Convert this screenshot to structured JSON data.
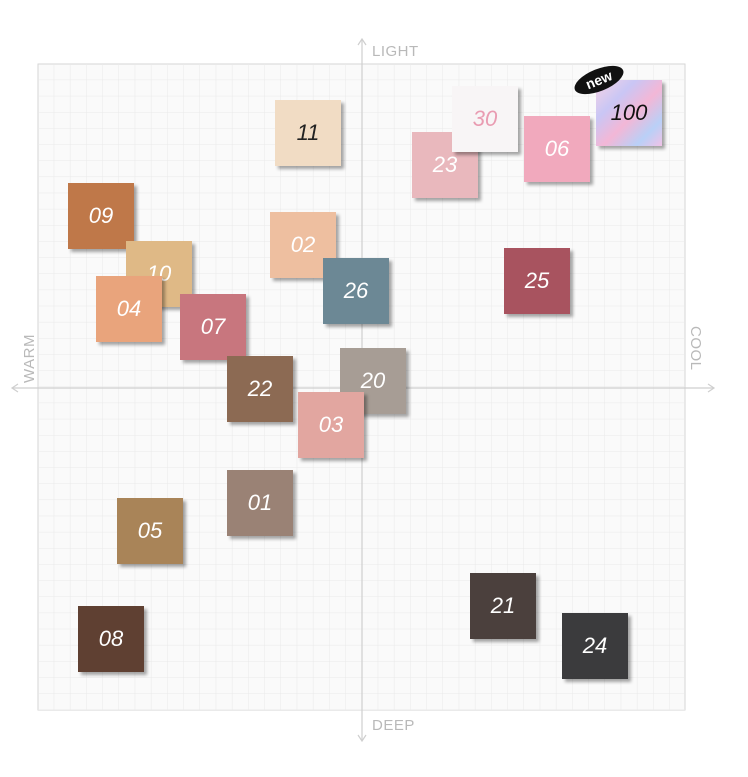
{
  "axes": {
    "top": "LIGHT",
    "bottom": "DEEP",
    "left": "WARM",
    "right": "COOL"
  },
  "badge": "new",
  "swatches": [
    {
      "label": "11"
    },
    {
      "label": "23"
    },
    {
      "label": "30"
    },
    {
      "label": "06"
    },
    {
      "label": "100"
    },
    {
      "label": "09"
    },
    {
      "label": "10"
    },
    {
      "label": "04"
    },
    {
      "label": "07"
    },
    {
      "label": "02"
    },
    {
      "label": "26"
    },
    {
      "label": "25"
    },
    {
      "label": "22"
    },
    {
      "label": "20"
    },
    {
      "label": "03"
    },
    {
      "label": "01"
    },
    {
      "label": "05"
    },
    {
      "label": "08"
    },
    {
      "label": "21"
    },
    {
      "label": "24"
    }
  ]
}
